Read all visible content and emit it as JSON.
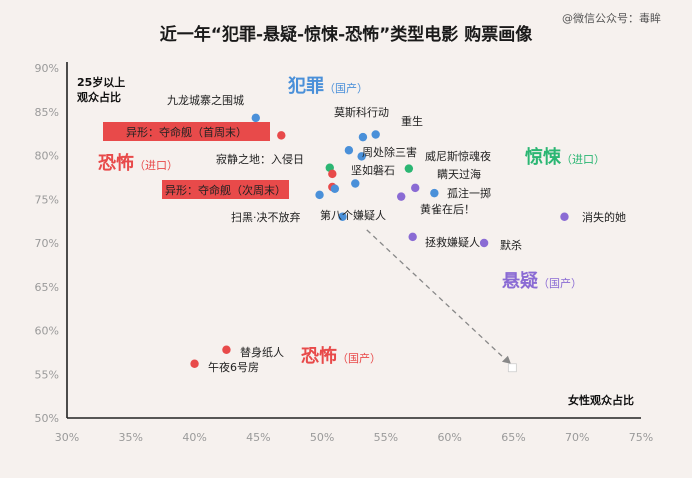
{
  "title": "近一年“犯罪-悬疑-惊悚-恐怖”类型电影 购票画像",
  "watermark": "@微信公众号：毒眸",
  "chart_data": {
    "type": "scatter",
    "xlabel": "女性观众占比",
    "ylabel_line1": "25岁以上",
    "ylabel_line2": "观众占比",
    "xlim": [
      30,
      75
    ],
    "ylim": [
      50,
      90
    ],
    "x_ticks": [
      "30%",
      "35%",
      "40%",
      "45%",
      "50%",
      "55%",
      "60%",
      "65%",
      "70%",
      "75%"
    ],
    "y_ticks": [
      "50%",
      "55%",
      "60%",
      "65%",
      "70%",
      "75%",
      "80%",
      "85%",
      "90%"
    ],
    "groups": [
      {
        "main": "犯罪",
        "sub": "（国产）",
        "color": "#4a90d9"
      },
      {
        "main": "惊悚",
        "sub": "（进口）",
        "color": "#2bb673"
      },
      {
        "main": "恐怖",
        "sub": "（进口）",
        "color": "#e84a4a"
      },
      {
        "main": "悬疑",
        "sub": "（国产）",
        "color": "#8a6bd4"
      },
      {
        "main": "恐怖",
        "sub": "（国产）",
        "color": "#e84a4a"
      }
    ],
    "points": [
      {
        "name": "九龙城寨之围城",
        "x": 44.8,
        "y": 84.3,
        "color": "#4a90d9"
      },
      {
        "name": "异形：夺命舰（首周末）",
        "x": 46.8,
        "y": 82.3,
        "color": "#e84a4a",
        "boxed": true
      },
      {
        "name": "莫斯科行动",
        "x": 53.2,
        "y": 82.1,
        "color": "#4a90d9"
      },
      {
        "name": "重生",
        "x": 54.2,
        "y": 82.4,
        "color": "#4a90d9"
      },
      {
        "name": "",
        "x": 52.1,
        "y": 80.6,
        "color": "#4a90d9"
      },
      {
        "name": "周处除三害",
        "x": 53.1,
        "y": 79.9,
        "color": "#4a90d9"
      },
      {
        "name": "威尼斯惊魂夜",
        "x": 56.8,
        "y": 78.5,
        "color": "#2bb673"
      },
      {
        "name": "寂静之地：入侵日",
        "x": 50.6,
        "y": 78.6,
        "color": "#2bb673"
      },
      {
        "name": "",
        "x": 50.8,
        "y": 77.9,
        "color": "#e84a4a"
      },
      {
        "name": "坚如磐石",
        "x": 52.6,
        "y": 76.8,
        "color": "#4a90d9"
      },
      {
        "name": "异形：夺命舰（次周末）",
        "x": 50.8,
        "y": 76.4,
        "color": "#e84a4a",
        "boxed": true
      },
      {
        "name": "瞒天过海",
        "x": 57.3,
        "y": 76.3,
        "color": "#8a6bd4"
      },
      {
        "name": "",
        "x": 51.0,
        "y": 76.2,
        "color": "#4a90d9"
      },
      {
        "name": "孤注一掷",
        "x": 58.8,
        "y": 75.7,
        "color": "#4a90d9"
      },
      {
        "name": "扫黑·决不放弃",
        "x": 49.8,
        "y": 75.5,
        "color": "#4a90d9"
      },
      {
        "name": "黄雀在后！",
        "x": 56.2,
        "y": 75.3,
        "color": "#8a6bd4"
      },
      {
        "name": "第八个嫌疑人",
        "x": 51.6,
        "y": 73.0,
        "color": "#4a90d9"
      },
      {
        "name": "消失的她",
        "x": 69.0,
        "y": 73.0,
        "color": "#8a6bd4"
      },
      {
        "name": "拯救嫌疑人",
        "x": 57.1,
        "y": 70.7,
        "color": "#8a6bd4"
      },
      {
        "name": "默杀",
        "x": 62.7,
        "y": 70.0,
        "color": "#8a6bd4"
      },
      {
        "name": "替身纸人",
        "x": 42.5,
        "y": 57.8,
        "color": "#e84a4a"
      },
      {
        "name": "午夜6号房",
        "x": 40.0,
        "y": 56.2,
        "color": "#e84a4a"
      }
    ]
  }
}
